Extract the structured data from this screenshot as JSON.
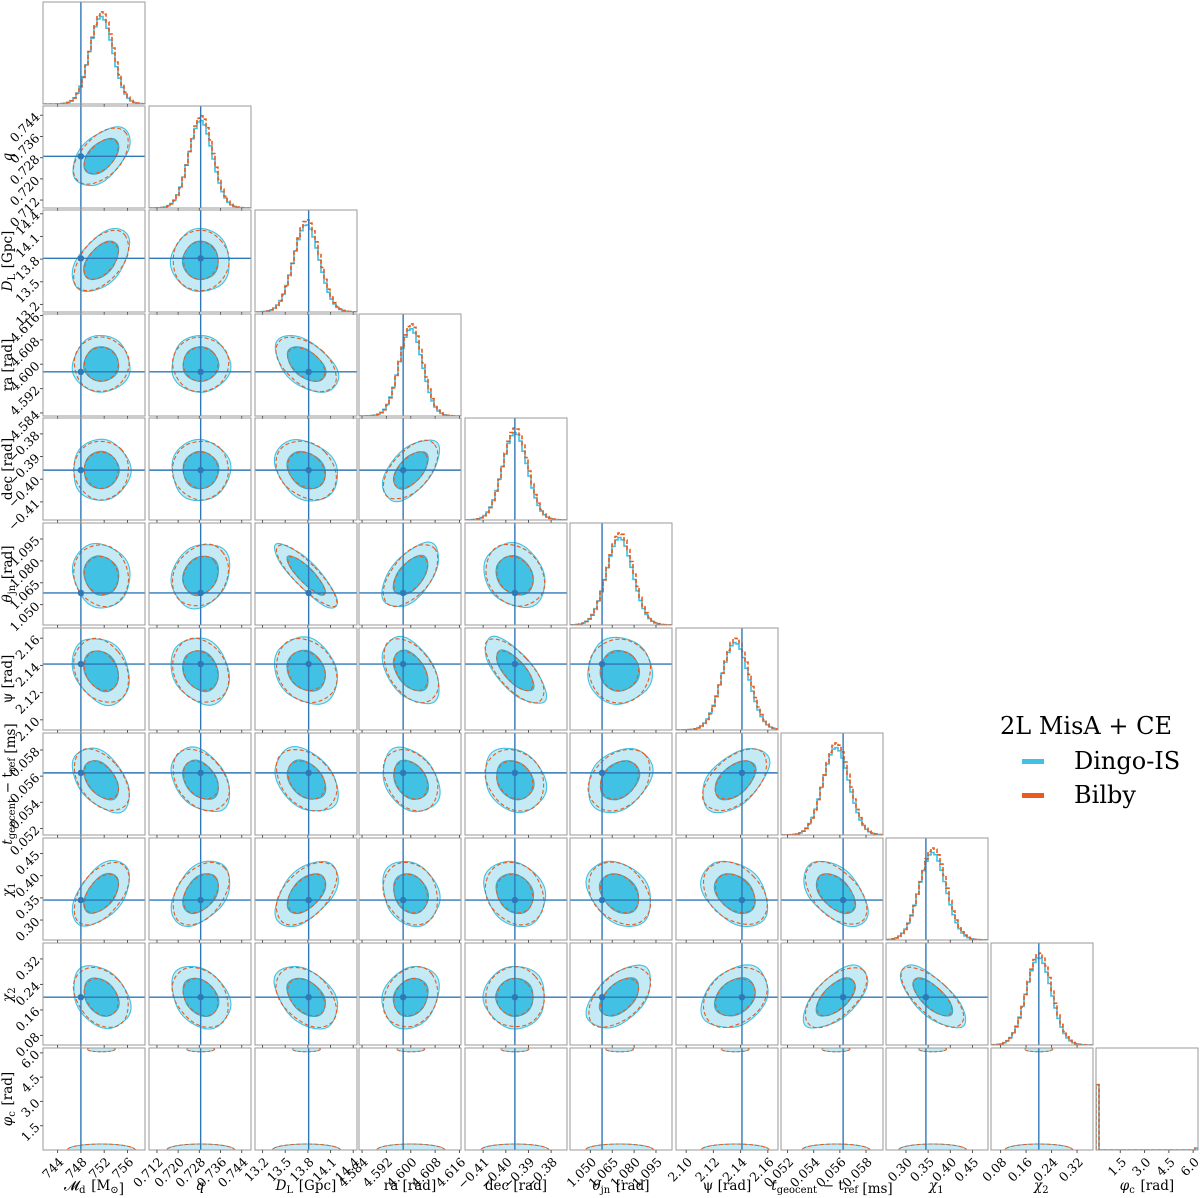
{
  "chart_data": {
    "type": "corner",
    "parameters": [
      {
        "key": "Mc",
        "label": "𝓜_d [M_⊙]",
        "label_main": "𝓜",
        "label_sub": "d",
        "label_unit": " [M",
        "unit_sub": "⊙",
        "unit_end": "]",
        "truth": 748.0,
        "ticks": [
          "744",
          "748",
          "752",
          "756"
        ],
        "tick_values": [
          744,
          748,
          752,
          756
        ],
        "range": [
          741.5,
          759
        ],
        "mean": 751.5,
        "sd": 2.0
      },
      {
        "key": "q",
        "label_main": "q",
        "label_sub": "",
        "label_unit": "",
        "unit_sub": "",
        "unit_end": "",
        "truth": 0.7285,
        "ticks": [
          "0.712",
          "0.720",
          "0.728",
          "0.736",
          "0.744"
        ],
        "tick_values": [
          0.712,
          0.72,
          0.728,
          0.736,
          0.744
        ],
        "range": [
          0.709,
          0.7475
        ],
        "mean": 0.7285,
        "sd": 0.0045
      },
      {
        "key": "DL",
        "label_main": "D",
        "label_sub": "L",
        "label_unit": " [Gpc]",
        "unit_sub": "",
        "unit_end": "",
        "truth": 13.81,
        "ticks": [
          "13.2",
          "13.5",
          "13.8",
          "14.1",
          "14.4"
        ],
        "tick_values": [
          13.2,
          13.5,
          13.8,
          14.1,
          14.4
        ],
        "range": [
          13.1,
          14.45
        ],
        "mean": 13.78,
        "sd": 0.17
      },
      {
        "key": "ra",
        "label_main": "ra [rad]",
        "label_sub": "",
        "label_unit": "",
        "unit_sub": "",
        "unit_end": "",
        "truth": 4.5975,
        "ticks": [
          "4.584",
          "4.592",
          "4.600",
          "4.608",
          "4.616"
        ],
        "tick_values": [
          4.584,
          4.592,
          4.6,
          4.608,
          4.616
        ],
        "range": [
          4.583,
          4.6165
        ],
        "mean": 4.6,
        "sd": 0.0038
      },
      {
        "key": "dec",
        "label_main": "dec [rad]",
        "label_sub": "",
        "label_unit": "",
        "unit_sub": "",
        "unit_end": "",
        "truth": -0.396,
        "ticks": [
          "−0.41",
          "−0.40",
          "−0.39",
          "−0.38"
        ],
        "tick_values": [
          -0.41,
          -0.4,
          -0.39,
          -0.38
        ],
        "range": [
          -0.418,
          -0.373
        ],
        "mean": -0.396,
        "sd": 0.0055
      },
      {
        "key": "thetajn",
        "label_main": "θ",
        "label_sub": "jn",
        "label_unit": " [rad]",
        "unit_sub": "",
        "unit_end": "",
        "truth": 1.058,
        "ticks": [
          "1.050",
          "1.065",
          "1.080",
          "1.095"
        ],
        "tick_values": [
          1.05,
          1.065,
          1.08,
          1.095
        ],
        "range": [
          1.036,
          1.106
        ],
        "mean": 1.07,
        "sd": 0.009
      },
      {
        "key": "psi",
        "label_main": "ψ [rad]",
        "label_sub": "",
        "label_unit": "",
        "unit_sub": "",
        "unit_end": "",
        "truth": 2.141,
        "ticks": [
          "2.10",
          "2.12",
          "2.14",
          "2.16"
        ],
        "tick_values": [
          2.1,
          2.12,
          2.14,
          2.16
        ],
        "range": [
          2.0925,
          2.1675
        ],
        "mean": 2.136,
        "sd": 0.01
      },
      {
        "key": "tc",
        "label_main": "t",
        "label_sub": "geocent",
        "label_unit": " − t",
        "unit_sub": "ref",
        "unit_end": " [ms]",
        "truth": 0.05625,
        "ticks": [
          "0.052",
          "0.054",
          "0.056",
          "0.058"
        ],
        "tick_values": [
          0.052,
          0.054,
          0.056,
          0.058
        ],
        "range": [
          0.0515,
          0.0593
        ],
        "mean": 0.0557,
        "sd": 0.001
      },
      {
        "key": "chi1",
        "label_main": "χ",
        "label_sub": "1",
        "label_unit": "",
        "unit_sub": "",
        "unit_end": "",
        "truth": 0.345,
        "ticks": [
          "0.30",
          "0.35",
          "0.40",
          "0.45"
        ],
        "tick_values": [
          0.3,
          0.35,
          0.4,
          0.45
        ],
        "range": [
          0.255,
          0.485
        ],
        "mean": 0.36,
        "sd": 0.03
      },
      {
        "key": "chi2",
        "label_main": "χ",
        "label_sub": "2",
        "label_unit": "",
        "unit_sub": "",
        "unit_end": "",
        "truth": 0.2,
        "ticks": [
          "0.08",
          "0.16",
          "0.24",
          "0.32"
        ],
        "tick_values": [
          0.08,
          0.16,
          0.24,
          0.32
        ],
        "range": [
          0.05,
          0.37
        ],
        "mean": 0.2,
        "sd": 0.04
      },
      {
        "key": "phic",
        "label_main": "φ",
        "label_sub": "c",
        "label_unit": " [rad]",
        "unit_sub": "",
        "unit_end": "",
        "truth": null,
        "ticks": [
          "1.5",
          "3.0",
          "4.5",
          "6.0"
        ],
        "tick_values": [
          1.5,
          3.0,
          4.5,
          6.0
        ],
        "range": [
          0.0,
          6.3
        ],
        "mean": 0.1,
        "sd": 0.05
      }
    ],
    "correlations": {
      "q|Mc": 0.5,
      "DL|Mc": 0.5,
      "ra|Mc": 0.0,
      "dec|Mc": 0.0,
      "thetajn|Mc": -0.1,
      "psi|Mc": -0.25,
      "tc|Mc": -0.45,
      "chi1|Mc": 0.5,
      "chi2|Mc": -0.3,
      "DL|q": 0.0,
      "ra|q": 0.0,
      "dec|q": 0.0,
      "thetajn|q": 0.2,
      "psi|q": -0.2,
      "tc|q": -0.35,
      "chi1|q": 0.4,
      "chi2|q": -0.3,
      "ra|DL": -0.5,
      "dec|DL": -0.25,
      "thetajn|DL": -0.85,
      "psi|DL": -0.2,
      "tc|DL": -0.35,
      "chi1|DL": 0.5,
      "chi2|DL": -0.4,
      "dec|ra": 0.55,
      "thetajn|ra": 0.55,
      "psi|ra": -0.45,
      "tc|ra": -0.3,
      "chi1|ra": -0.2,
      "chi2|ra": 0.2,
      "thetajn|dec": -0.2,
      "psi|dec": -0.7,
      "tc|dec": -0.2,
      "chi1|dec": -0.2,
      "chi2|dec": 0.0,
      "psi|thetajn": 0.0,
      "tc|thetajn": 0.3,
      "chi1|thetajn": -0.3,
      "chi2|thetajn": 0.5,
      "tc|psi": 0.5,
      "chi1|psi": -0.35,
      "chi2|psi": 0.3,
      "chi1|tc": -0.5,
      "chi2|tc": 0.6,
      "chi2|chi1": -0.7
    },
    "series": [
      {
        "name": "Dingo-IS",
        "color": "#41c1e3",
        "style": "solid"
      },
      {
        "name": "Bilby",
        "color": "#ea5a1c",
        "style": "dashed"
      }
    ],
    "truth_color": "#2f78b7",
    "contour_levels": [
      "1σ",
      "2σ"
    ],
    "legend_placement": "right-middle"
  },
  "legend": {
    "title": "2L MisA + CE",
    "items": [
      "Dingo-IS",
      "Bilby"
    ]
  }
}
